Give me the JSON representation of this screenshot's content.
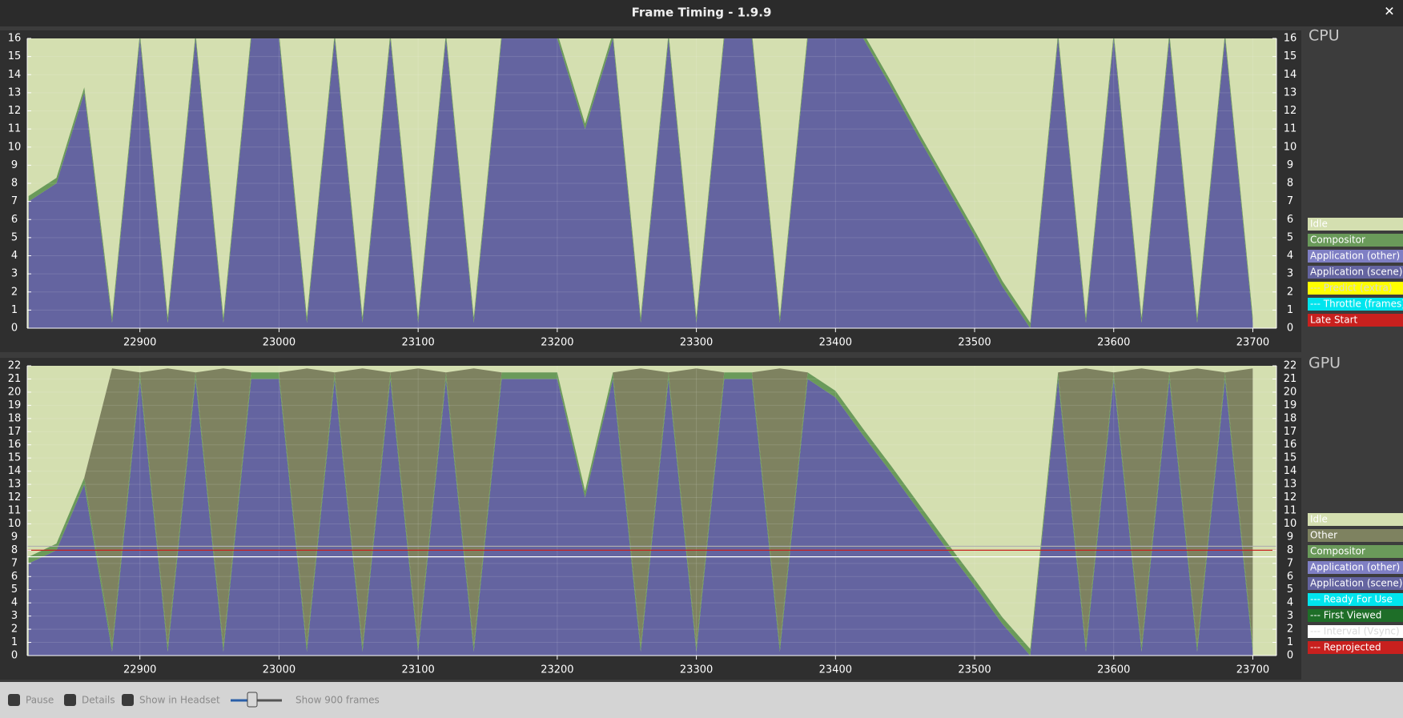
{
  "window": {
    "title": "Frame Timing - 1.9.9",
    "close": "✕"
  },
  "chart_data": [
    {
      "type": "stacked-area",
      "label": "CPU",
      "plot_background": "#d4dfb0",
      "x": [
        22820,
        22840,
        22860,
        22880,
        22900,
        22920,
        22940,
        22960,
        22980,
        23000,
        23020,
        23040,
        23060,
        23080,
        23100,
        23120,
        23140,
        23160,
        23180,
        23200,
        23220,
        23240,
        23260,
        23280,
        23300,
        23320,
        23340,
        23360,
        23380,
        23400,
        23420,
        23440,
        23460,
        23480,
        23500,
        23520,
        23540,
        23560,
        23580,
        23600,
        23620,
        23640,
        23660,
        23680,
        23700
      ],
      "xlim": [
        22819,
        23717
      ],
      "xticks": [
        22900,
        23000,
        23100,
        23200,
        23300,
        23400,
        23500,
        23600,
        23700
      ],
      "ylim": [
        0,
        16
      ],
      "yticks": [
        0,
        1,
        2,
        3,
        4,
        5,
        6,
        7,
        8,
        9,
        10,
        11,
        12,
        13,
        14,
        15,
        16
      ],
      "grid": true,
      "legend": [
        {
          "name": "Idle",
          "color": "#d4dfb0",
          "text_color": "#ffffff"
        },
        {
          "name": "Compositor",
          "color": "#6a9a5a",
          "text_color": "#ffffff",
          "values": [
            0.3,
            0.3,
            0.3,
            0.3,
            0.3,
            0.3,
            0.3,
            0.3,
            0.3,
            0.3,
            0.3,
            0.3,
            0.3,
            0.3,
            0.3,
            0.3,
            0.3,
            0.3,
            0.3,
            0.3,
            0.3,
            0.3,
            0.3,
            0.3,
            0.3,
            0.3,
            0.3,
            0.3,
            0.3,
            0.3,
            0.3,
            0.3,
            0.3,
            0.3,
            0.3,
            0.3,
            0.3,
            0.3,
            0.3,
            0.3,
            0.3,
            0.3,
            0.3,
            0.3,
            0.3
          ]
        },
        {
          "name": "Application (other)",
          "color": "#7f7fc4",
          "text_color": "#ffffff"
        },
        {
          "name": "Application (scene)",
          "color": "#6464a0",
          "text_color": "#ffffff",
          "values": [
            7,
            8,
            13,
            0.3,
            16,
            0.3,
            16,
            0.3,
            16,
            16,
            0.3,
            16,
            0.3,
            16,
            0.3,
            16,
            0.3,
            16,
            16,
            16,
            11,
            16,
            0.3,
            16,
            0.3,
            16,
            16,
            0.3,
            16,
            16,
            16,
            13.3,
            10.5,
            7.8,
            5.1,
            2.3,
            0,
            16,
            0.3,
            16,
            0.3,
            16,
            0.3,
            16,
            0.3
          ]
        },
        {
          "name": "--- Predict (extra)",
          "color": "#ffff00",
          "text_color": "#d8d8d8"
        },
        {
          "name": "--- Throttle (frames)",
          "color": "#00e5ee",
          "text_color": "#ffffff"
        },
        {
          "name": "Late Start",
          "color": "#c8201e",
          "text_color": "#ffffff"
        }
      ]
    },
    {
      "type": "stacked-area",
      "label": "GPU",
      "plot_background": "#d4dfb0",
      "x": [
        22820,
        22840,
        22860,
        22880,
        22900,
        22920,
        22940,
        22960,
        22980,
        23000,
        23020,
        23040,
        23060,
        23080,
        23100,
        23120,
        23140,
        23160,
        23180,
        23200,
        23220,
        23240,
        23260,
        23280,
        23300,
        23320,
        23340,
        23360,
        23380,
        23400,
        23420,
        23440,
        23460,
        23480,
        23500,
        23520,
        23540,
        23560,
        23580,
        23600,
        23620,
        23640,
        23660,
        23680,
        23700
      ],
      "xlim": [
        22819,
        23717
      ],
      "xticks": [
        22900,
        23000,
        23100,
        23200,
        23300,
        23400,
        23500,
        23600,
        23700
      ],
      "ylim": [
        0,
        22
      ],
      "yticks": [
        0,
        1,
        2,
        3,
        4,
        5,
        6,
        7,
        8,
        9,
        10,
        11,
        12,
        13,
        14,
        15,
        16,
        17,
        18,
        19,
        20,
        21,
        22
      ],
      "grid": true,
      "hlines": [
        {
          "value": 8.3,
          "color": "#b0b0b0"
        },
        {
          "value": 8,
          "color": "#c8201e"
        },
        {
          "value": 7.5,
          "color": "#ffffff"
        }
      ],
      "legend": [
        {
          "name": "Idle",
          "color": "#d4dfb0",
          "text_color": "#ffffff"
        },
        {
          "name": "Other",
          "color": "#7e8260",
          "text_color": "#ffffff",
          "values": [
            0,
            0,
            0,
            21,
            0,
            21,
            0,
            21,
            0,
            0,
            21,
            0,
            21,
            0,
            21,
            0,
            21,
            0,
            0,
            0,
            0,
            0,
            21,
            0,
            21,
            0,
            0,
            21,
            0,
            0,
            0,
            0,
            0,
            0,
            0,
            0,
            0,
            0,
            21,
            0,
            21,
            0,
            21,
            0,
            21
          ]
        },
        {
          "name": "Compositor",
          "color": "#6a9a5a",
          "text_color": "#ffffff",
          "values": [
            0.5,
            0.5,
            0.5,
            0.5,
            0.5,
            0.5,
            0.5,
            0.5,
            0.5,
            0.5,
            0.5,
            0.5,
            0.5,
            0.5,
            0.5,
            0.5,
            0.5,
            0.5,
            0.5,
            0.5,
            0.5,
            0.5,
            0.5,
            0.5,
            0.5,
            0.5,
            0.5,
            0.5,
            0.5,
            0.5,
            0.5,
            0.5,
            0.5,
            0.5,
            0.5,
            0.5,
            0.5,
            0.5,
            0.5,
            0.5,
            0.5,
            0.5,
            0.5,
            0.5,
            0.5
          ]
        },
        {
          "name": "Application (other)",
          "color": "#7f7fc4",
          "text_color": "#ffffff"
        },
        {
          "name": "Application (scene)",
          "color": "#6464a0",
          "text_color": "#ffffff",
          "values": [
            7,
            8,
            13,
            0.3,
            21,
            0.3,
            21,
            0.3,
            21,
            21,
            0.3,
            21,
            0.3,
            21,
            0.3,
            21,
            0.3,
            21,
            21,
            21,
            12,
            21,
            0.3,
            21,
            0.3,
            21,
            21,
            0.3,
            21,
            19.6,
            16.7,
            13.9,
            11,
            8.1,
            5.3,
            2.4,
            0,
            21,
            0.3,
            21,
            0.3,
            21,
            0.3,
            21,
            0.3
          ]
        },
        {
          "name": "--- Ready For Use",
          "color": "#00e5ee",
          "text_color": "#ffffff"
        },
        {
          "name": "--- First Viewed",
          "color": "#1e6e28",
          "text_color": "#ffffff"
        },
        {
          "name": "--- Interval (Vsync)",
          "color": "#ffffff",
          "text_color": "#d8d8d8"
        },
        {
          "name": "--- Reprojected",
          "color": "#c8201e",
          "text_color": "#ffffff"
        }
      ]
    }
  ],
  "controls": {
    "pause": "Pause",
    "details": "Details",
    "headset": "Show in Headset",
    "frames": "Show 900 frames"
  }
}
